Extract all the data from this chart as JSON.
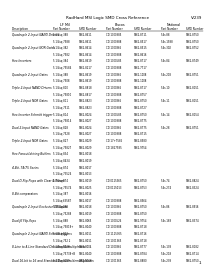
{
  "title": "RadHard MSI Logic SMD Cross Reference",
  "page": "V/239",
  "background_color": "#ffffff",
  "group_labels": [
    "LF Mil",
    "Biscos",
    "National"
  ],
  "subheaders": [
    "Part Number",
    "SMD Number",
    "Part Number",
    "SMD Number",
    "Part Number",
    "SMD Number"
  ],
  "rows_data": [
    {
      "desc": "Quadruple 2-Input NAND Drivers",
      "subrows": [
        [
          "5 1/4sq 388",
          "5962-8611",
          "CD 1000885",
          "5962-8711",
          "54s 88",
          "5962-8750"
        ],
        [
          "5 1/4sq 7588",
          "5962-8611",
          "CD 1000888",
          "5962-8517",
          "54s 1588",
          "5962-8750"
        ]
      ]
    },
    {
      "desc": "Quadruple 2-Input NOR Gates",
      "subrows": [
        [
          "5 1/4sq 382",
          "5962-8614",
          "CD 1000365",
          "5962-8515",
          "54s 302",
          "5962-8752"
        ],
        [
          "5 1/4sq 7582",
          "5962-8614",
          "CD 1000888",
          "5962-8616",
          "",
          ""
        ]
      ]
    },
    {
      "desc": "Hex Inverters",
      "subrows": [
        [
          "5 1/4sq 384",
          "5962-8619",
          "CD 1000585",
          "5962-8717",
          "54s 84",
          "5962-8749"
        ],
        [
          "5 1/4sq 75584",
          "5962-8217",
          "CD 1000888",
          "5962-7717",
          "",
          ""
        ]
      ]
    },
    {
      "desc": "Quadruple 2-Input Gates",
      "subrows": [
        [
          "5 1/4sq 388",
          "5962-8619",
          "CD 1000365",
          "5962-1008",
          "54s 208",
          "5962-8751"
        ],
        [
          "5 1/4sq 7508",
          "5962-8619",
          "CD 1000888",
          "5962-1008",
          "",
          ""
        ]
      ]
    },
    {
      "desc": "Triple 2-Input NAND Drivers",
      "subrows": [
        [
          "5 1/4sq 810",
          "5962-8818",
          "CD 1000365",
          "5962-8717",
          "54s 10",
          "5962-8151"
        ],
        [
          "5 1/4sq 75810",
          "5962-8817",
          "CD 1000888",
          "5962-8757",
          "",
          ""
        ]
      ]
    },
    {
      "desc": "Triple 2-Input NOR Gates",
      "subrows": [
        [
          "5 1/4sq 811",
          "5962-8823",
          "CD 1000365",
          "5962-8750",
          "54s 11",
          "5962-8151"
        ],
        [
          "5 1/4sq 7511",
          "5962-8823",
          "CD 1000888",
          "5962-8727",
          "",
          ""
        ]
      ]
    },
    {
      "desc": "Hex Inverter Schmitt trigger",
      "subrows": [
        [
          "5 1/4sq 814",
          "5962-8024",
          "CD 1000585",
          "5962-8750",
          "54s 14",
          "5962-8154"
        ],
        [
          "5 1/4sq 75814",
          "5962-8027",
          "CD 1000888",
          "5962-8775",
          "",
          ""
        ]
      ]
    },
    {
      "desc": "Dual 2-Input NAND Gates",
      "subrows": [
        [
          "5 1/4sq 828",
          "5962-8024",
          "CD 1000365",
          "5962-8775",
          "54s 28",
          "5962-8751"
        ],
        [
          "5 1/4sq 7528",
          "5962-8027",
          "CD 1000888",
          "5962-8715",
          "",
          ""
        ]
      ]
    },
    {
      "desc": "Triple 2-Input NOR Gates",
      "subrows": [
        [
          "5 1/4sq 827",
          "5962-8029",
          "CD 17+7585",
          "5962-8580",
          "",
          ""
        ],
        [
          "5 1/4sq 75827",
          "5962-8029",
          "CD 1827585",
          "5962-9754",
          "",
          ""
        ]
      ]
    },
    {
      "desc": "Hex Fanout/driving Buffers",
      "subrows": [
        [
          "5 1/4sq 834",
          "5962-8018",
          "",
          "",
          "",
          ""
        ],
        [
          "5 1/4sq 8434",
          "5962-8019",
          "",
          "",
          "",
          ""
        ]
      ]
    },
    {
      "desc": "4-Bit, 74/75 Series",
      "subrows": [
        [
          "5 1/4sq 874",
          "5962-8017",
          "",
          "",
          "",
          ""
        ],
        [
          "5 1/4sq 73524",
          "5962-8013",
          "",
          "",
          "",
          ""
        ]
      ]
    },
    {
      "desc": "Dual D-Flip Flops with Clear & Preset",
      "subrows": [
        [
          "5 1/4sq 874",
          "5962-8019",
          "CD 0115365",
          "5962-8750",
          "54s 74",
          "5962-8824"
        ],
        [
          "5 1/4sq 75574",
          "5962-8025",
          "CD 0115013",
          "5962-8753",
          "54s 274",
          "5962-8324"
        ]
      ]
    },
    {
      "desc": "8-Bit comparators",
      "subrows": [
        [
          "5 1/4sq 387",
          "5962-8016",
          "",
          "",
          "",
          ""
        ],
        [
          "5 1/4sq 63587",
          "5962-8017",
          "CD 1000888",
          "5962-8564",
          "",
          ""
        ]
      ]
    },
    {
      "desc": "Quadruple 2-Input Exclusive OR Gates",
      "subrows": [
        [
          "5 1/4sq 288",
          "5962-8018",
          "CD 1000365",
          "5962-8750",
          "54s 86",
          "5962-8916"
        ],
        [
          "5 1/4sq 75288",
          "5962-8019",
          "CD 1000888",
          "5962-8750",
          "",
          ""
        ]
      ]
    },
    {
      "desc": "Dual JK Flip-flops",
      "subrows": [
        [
          "5 1/4sq 888",
          "5962-8065",
          "CD 1000526",
          "5962-9754",
          "54s 188",
          "5962-8374"
        ],
        [
          "5 1/4sq 75818+",
          "5962-8040",
          "CD 1000888",
          "5962-8718",
          "",
          ""
        ]
      ]
    },
    {
      "desc": "Quadruple 2-Input NAND Schmitt triggers",
      "subrows": [
        [
          "5 1/4sq 812",
          "5962-8011",
          "CD 1115365",
          "5962-8716",
          "",
          ""
        ],
        [
          "5 1/4sq 752 2",
          "5962-8011",
          "CD 1001365",
          "5962-8718",
          "",
          ""
        ]
      ]
    },
    {
      "desc": "8-Line to 4-Line Standard Decoders/demultiplexers",
      "subrows": [
        [
          "5 1/4sq 8138",
          "5962-8004",
          "CD 1000365",
          "5962-8777",
          "54s 138",
          "5962-8182"
        ],
        [
          "5 1/4sq 75738+B",
          "5962-8040",
          "CD 1000888",
          "5962-8784",
          "54s 218",
          "5962-8714"
        ]
      ]
    },
    {
      "desc": "Dual 16-bit to 16 and Standard Decoders/demultiplexers",
      "subrows": [
        [
          "5 1/4sq 8139",
          "5962-8018",
          "CD 1001365",
          "5962-8880",
          "54s 238",
          "5962-8750"
        ]
      ]
    }
  ]
}
